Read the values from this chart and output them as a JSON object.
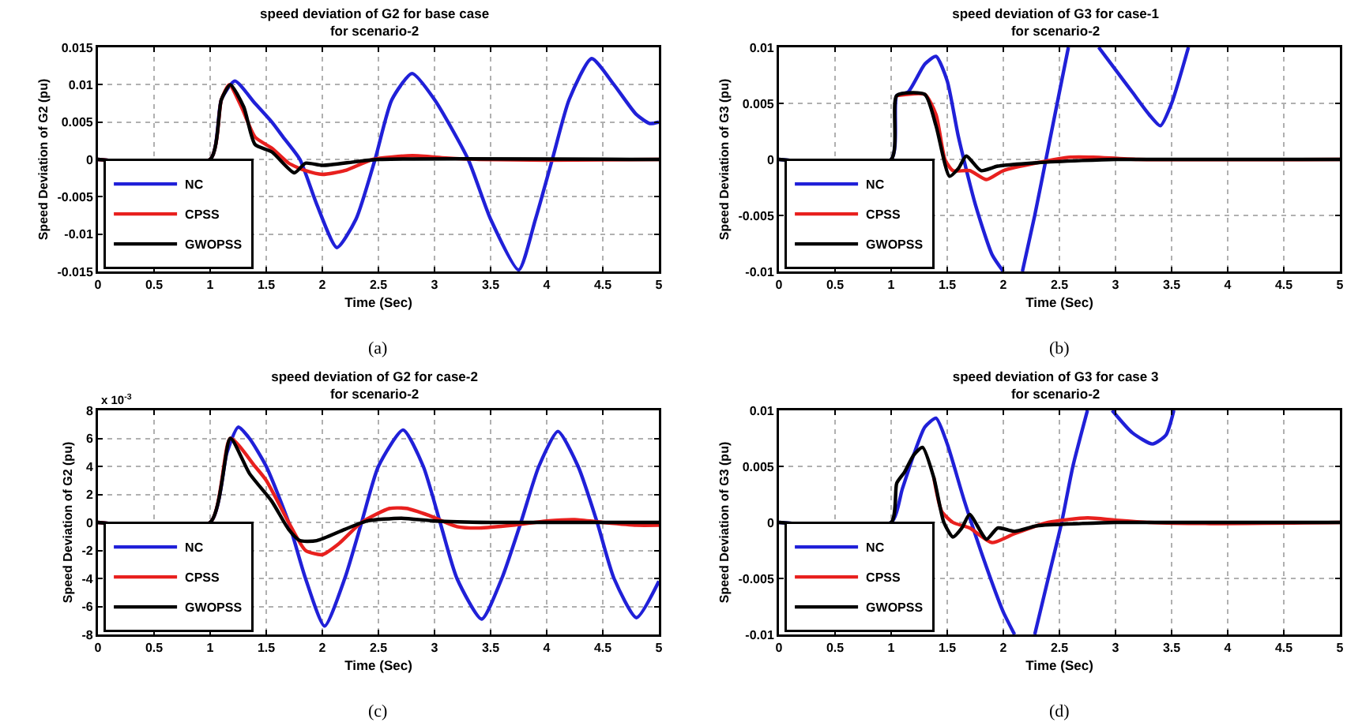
{
  "chart_data": [
    {
      "type": "line",
      "title": "speed deviation of G2 for base case",
      "subtitle": "for scenario-2",
      "xlabel": "Time (Sec)",
      "ylabel": "Speed Deviation of G2 (pu)",
      "annotations": [
        "(a)"
      ],
      "xlim": [
        0,
        5
      ],
      "xticks": [
        0,
        0.5,
        1,
        1.5,
        2,
        2.5,
        3,
        3.5,
        4,
        4.5,
        5
      ],
      "ylim": [
        -0.015,
        0.015
      ],
      "yticks": [
        -0.015,
        -0.01,
        -0.005,
        0,
        0.005,
        0.01,
        0.015
      ],
      "grid": true,
      "legend": "bottom left",
      "line_style": "solid",
      "series": [
        {
          "name": "NC",
          "color": "#2020d8",
          "x": [
            0,
            1,
            1.1,
            1.22,
            1.4,
            1.55,
            1.65,
            1.8,
            1.95,
            2.13,
            2.3,
            2.47,
            2.62,
            2.8,
            3,
            3.3,
            3.5,
            3.75,
            3.9,
            4.05,
            4.2,
            4.4,
            4.6,
            4.8,
            4.92,
            5
          ],
          "values": [
            0,
            0,
            0.008,
            0.0105,
            0.0075,
            0.005,
            0.003,
            0,
            -0.006,
            -0.0118,
            -0.008,
            0,
            0.008,
            0.0115,
            0.008,
            0,
            -0.008,
            -0.0148,
            -0.008,
            0,
            0.008,
            0.0135,
            0.01,
            0.006,
            0.0048,
            0.005
          ]
        },
        {
          "name": "CPSS",
          "color": "#e8201e",
          "x": [
            0,
            1,
            1.1,
            1.17,
            1.28,
            1.4,
            1.55,
            1.7,
            1.85,
            2,
            2.2,
            2.45,
            2.8,
            3.1,
            3.4,
            4,
            5
          ],
          "values": [
            0,
            0,
            0.008,
            0.01,
            0.007,
            0.003,
            0.0015,
            -0.0005,
            -0.0015,
            -0.002,
            -0.0015,
            0,
            0.0005,
            0.0002,
            0,
            -0.0001,
            0
          ]
        },
        {
          "name": "GWOPSS",
          "color": "#000000",
          "x": [
            0,
            1,
            1.1,
            1.18,
            1.3,
            1.4,
            1.55,
            1.75,
            1.85,
            2,
            2.3,
            2.5,
            5
          ],
          "values": [
            0,
            0,
            0.008,
            0.01,
            0.007,
            0.002,
            0.001,
            -0.0018,
            -0.0005,
            -0.0008,
            -0.0003,
            0,
            0
          ]
        }
      ]
    },
    {
      "type": "line",
      "title": "speed deviation of G3 for case-1",
      "subtitle": "for scenario-2",
      "xlabel": "Time (Sec)",
      "ylabel": "Speed Deviation of G3 (pu)",
      "annotations": [
        "(b)"
      ],
      "xlim": [
        0,
        5
      ],
      "xticks": [
        0,
        0.5,
        1,
        1.5,
        2,
        2.5,
        3,
        3.5,
        4,
        4.5,
        5
      ],
      "ylim": [
        -0.01,
        0.01
      ],
      "yticks": [
        -0.01,
        -0.005,
        0,
        0.005,
        0.01
      ],
      "grid": true,
      "legend": "bottom left",
      "line_style": "solid",
      "series": [
        {
          "name": "NC",
          "color": "#2020d8",
          "x": [
            0,
            1,
            1.05,
            1.15,
            1.3,
            1.4,
            1.5,
            1.6,
            1.75,
            1.9,
            2,
            2.08,
            2.17,
            2.28,
            2.38,
            2.5,
            2.58,
            2.7,
            2.85,
            3,
            3.15,
            3.3,
            3.4,
            3.5,
            3.65
          ],
          "values": [
            0,
            0,
            0.0057,
            0.006,
            0.0085,
            0.0092,
            0.007,
            0.002,
            -0.004,
            -0.0085,
            -0.01,
            null,
            -0.01,
            -0.005,
            0,
            0.006,
            0.01,
            null,
            0.01,
            0.008,
            0.006,
            0.004,
            0.003,
            0.005,
            0.01
          ]
        },
        {
          "name": "CPSS",
          "color": "#e8201e",
          "x": [
            1.05,
            1.3,
            1.4,
            1.48,
            1.55,
            1.7,
            1.85,
            2,
            2.3,
            2.6,
            2.8,
            3.2,
            5
          ],
          "values": [
            0.0057,
            0.0058,
            0.004,
            0,
            -0.001,
            -0.001,
            -0.0018,
            -0.001,
            -0.0003,
            0.0002,
            0.0002,
            0,
            0
          ]
        },
        {
          "name": "GWOPSS",
          "color": "#000000",
          "x": [
            0,
            1,
            1.05,
            1.3,
            1.4,
            1.52,
            1.6,
            1.67,
            1.8,
            1.95,
            2.3,
            2.7,
            3,
            5
          ],
          "values": [
            0,
            0,
            0.0057,
            0.0058,
            0.003,
            -0.0015,
            -0.0008,
            0.0003,
            -0.001,
            -0.0006,
            -0.0003,
            -0.0001,
            0,
            0
          ]
        }
      ]
    },
    {
      "type": "line",
      "title": "speed deviation of G2 for case-2",
      "subtitle": "for scenario-2",
      "xlabel": "Time (Sec)",
      "ylabel": "Speed Deviation of G2 (pu)",
      "annotations": [
        "x 10$^{-3}$",
        "(c)"
      ],
      "xlim": [
        0,
        5
      ],
      "xticks": [
        0,
        0.5,
        1,
        1.5,
        2,
        2.5,
        3,
        3.5,
        4,
        4.5,
        5
      ],
      "ylim": [
        -8,
        8
      ],
      "yticks": [
        -8,
        -6,
        -4,
        -2,
        0,
        2,
        4,
        6,
        8
      ],
      "grid": true,
      "legend": "bottom left",
      "line_style": "solid",
      "series": [
        {
          "name": "NC",
          "color": "#2020d8",
          "x": [
            0,
            1,
            1.15,
            1.25,
            1.35,
            1.5,
            1.7,
            1.85,
            2.02,
            2.2,
            2.35,
            2.5,
            2.72,
            2.9,
            3.05,
            3.2,
            3.42,
            3.6,
            3.77,
            3.93,
            4.1,
            4.28,
            4.45,
            4.6,
            4.8,
            5
          ],
          "values": [
            0,
            0,
            5,
            6.8,
            6,
            4,
            0,
            -4,
            -7.4,
            -4,
            0,
            4,
            6.6,
            4,
            0,
            -4,
            -6.9,
            -4,
            0,
            4,
            6.5,
            4,
            0,
            -4,
            -6.8,
            -4.2
          ]
        },
        {
          "name": "CPSS",
          "color": "#e8201e",
          "x": [
            0,
            1,
            1.18,
            1.4,
            1.5,
            1.7,
            1.85,
            2,
            2.15,
            2.35,
            2.6,
            2.75,
            2.95,
            3.2,
            3.4,
            3.7,
            4,
            4.25,
            4.5,
            4.8,
            5
          ],
          "values": [
            0,
            0,
            6,
            4,
            3,
            0,
            -2,
            -2.3,
            -1.5,
            0,
            1,
            1,
            0.5,
            -0.3,
            -0.4,
            -0.2,
            0.1,
            0.2,
            0,
            -0.2,
            -0.2
          ]
        },
        {
          "name": "GWOPSS",
          "color": "#000000",
          "x": [
            0,
            1,
            1.18,
            1.35,
            1.55,
            1.7,
            1.8,
            1.95,
            2.2,
            2.4,
            2.7,
            3,
            3.5,
            5
          ],
          "values": [
            0,
            0,
            6,
            3.5,
            1.5,
            -0.5,
            -1.3,
            -1.3,
            -0.5,
            0.1,
            0.3,
            0.1,
            0,
            0
          ]
        }
      ]
    },
    {
      "type": "line",
      "title": "speed deviation of G3 for case 3",
      "subtitle": "for scenario-2",
      "xlabel": "Time (Sec)",
      "ylabel": "Speed Deviation of G3 (pu)",
      "annotations": [
        "(d)"
      ],
      "xlim": [
        0,
        5
      ],
      "xticks": [
        0,
        0.5,
        1,
        1.5,
        2,
        2.5,
        3,
        3.5,
        4,
        4.5,
        5
      ],
      "ylim": [
        -0.01,
        0.01
      ],
      "yticks": [
        -0.01,
        -0.005,
        0,
        0.005,
        0.01
      ],
      "grid": true,
      "legend": "bottom left",
      "line_style": "solid",
      "series": [
        {
          "name": "NC",
          "color": "#2020d8",
          "x": [
            0,
            1,
            1.1,
            1.2,
            1.3,
            1.4,
            1.5,
            1.65,
            1.85,
            2,
            2.1,
            2.2,
            2.28,
            2.4,
            2.52,
            2.62,
            2.75,
            2.85,
            2.97,
            3.15,
            3.33,
            3.45,
            3.52
          ],
          "values": [
            0,
            0,
            0.003,
            0.006,
            0.0085,
            0.0093,
            0.007,
            0.002,
            -0.004,
            -0.008,
            -0.01,
            null,
            -0.01,
            -0.005,
            0,
            0.005,
            0.01,
            null,
            0.01,
            0.008,
            0.007,
            0.0078,
            0.01
          ]
        },
        {
          "name": "CPSS",
          "color": "#e8201e",
          "x": [
            1.38,
            1.45,
            1.55,
            1.7,
            1.9,
            2.1,
            2.4,
            2.75,
            3,
            3.3,
            3.8,
            5
          ],
          "values": [
            0.004,
            0.001,
            0,
            -0.0005,
            -0.0018,
            -0.001,
            0,
            0.0004,
            0.0002,
            0,
            -0.0001,
            0
          ]
        },
        {
          "name": "GWOPSS",
          "color": "#000000",
          "x": [
            0,
            1,
            1.05,
            1.12,
            1.2,
            1.28,
            1.38,
            1.47,
            1.55,
            1.63,
            1.7,
            1.85,
            1.95,
            2.1,
            2.3,
            2.7,
            3,
            5
          ],
          "values": [
            0,
            0,
            0.0035,
            0.0045,
            0.006,
            0.0067,
            0.004,
            0,
            -0.0013,
            -0.0005,
            0.0007,
            -0.0015,
            -0.0005,
            -0.0008,
            -0.0003,
            -0.0001,
            0,
            0
          ]
        }
      ]
    }
  ]
}
